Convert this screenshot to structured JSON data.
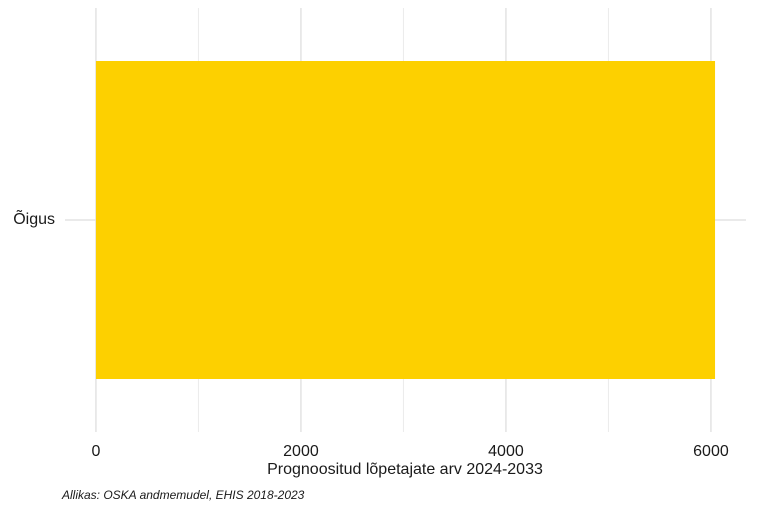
{
  "chart_data": {
    "type": "barh",
    "categories": [
      "Õigus"
    ],
    "values": [
      6040
    ],
    "color": "#fdd000",
    "xlabel": "Prognoositud lõpetajate arv 2024-2033",
    "caption": "Allikas: OSKA andmemudel, EHIS 2018-2023",
    "xlim": [
      -302,
      6342
    ],
    "xticks": [
      0,
      2000,
      4000,
      6000
    ],
    "minor_xgrid": [
      1000,
      3000,
      5000
    ],
    "grid": true
  }
}
